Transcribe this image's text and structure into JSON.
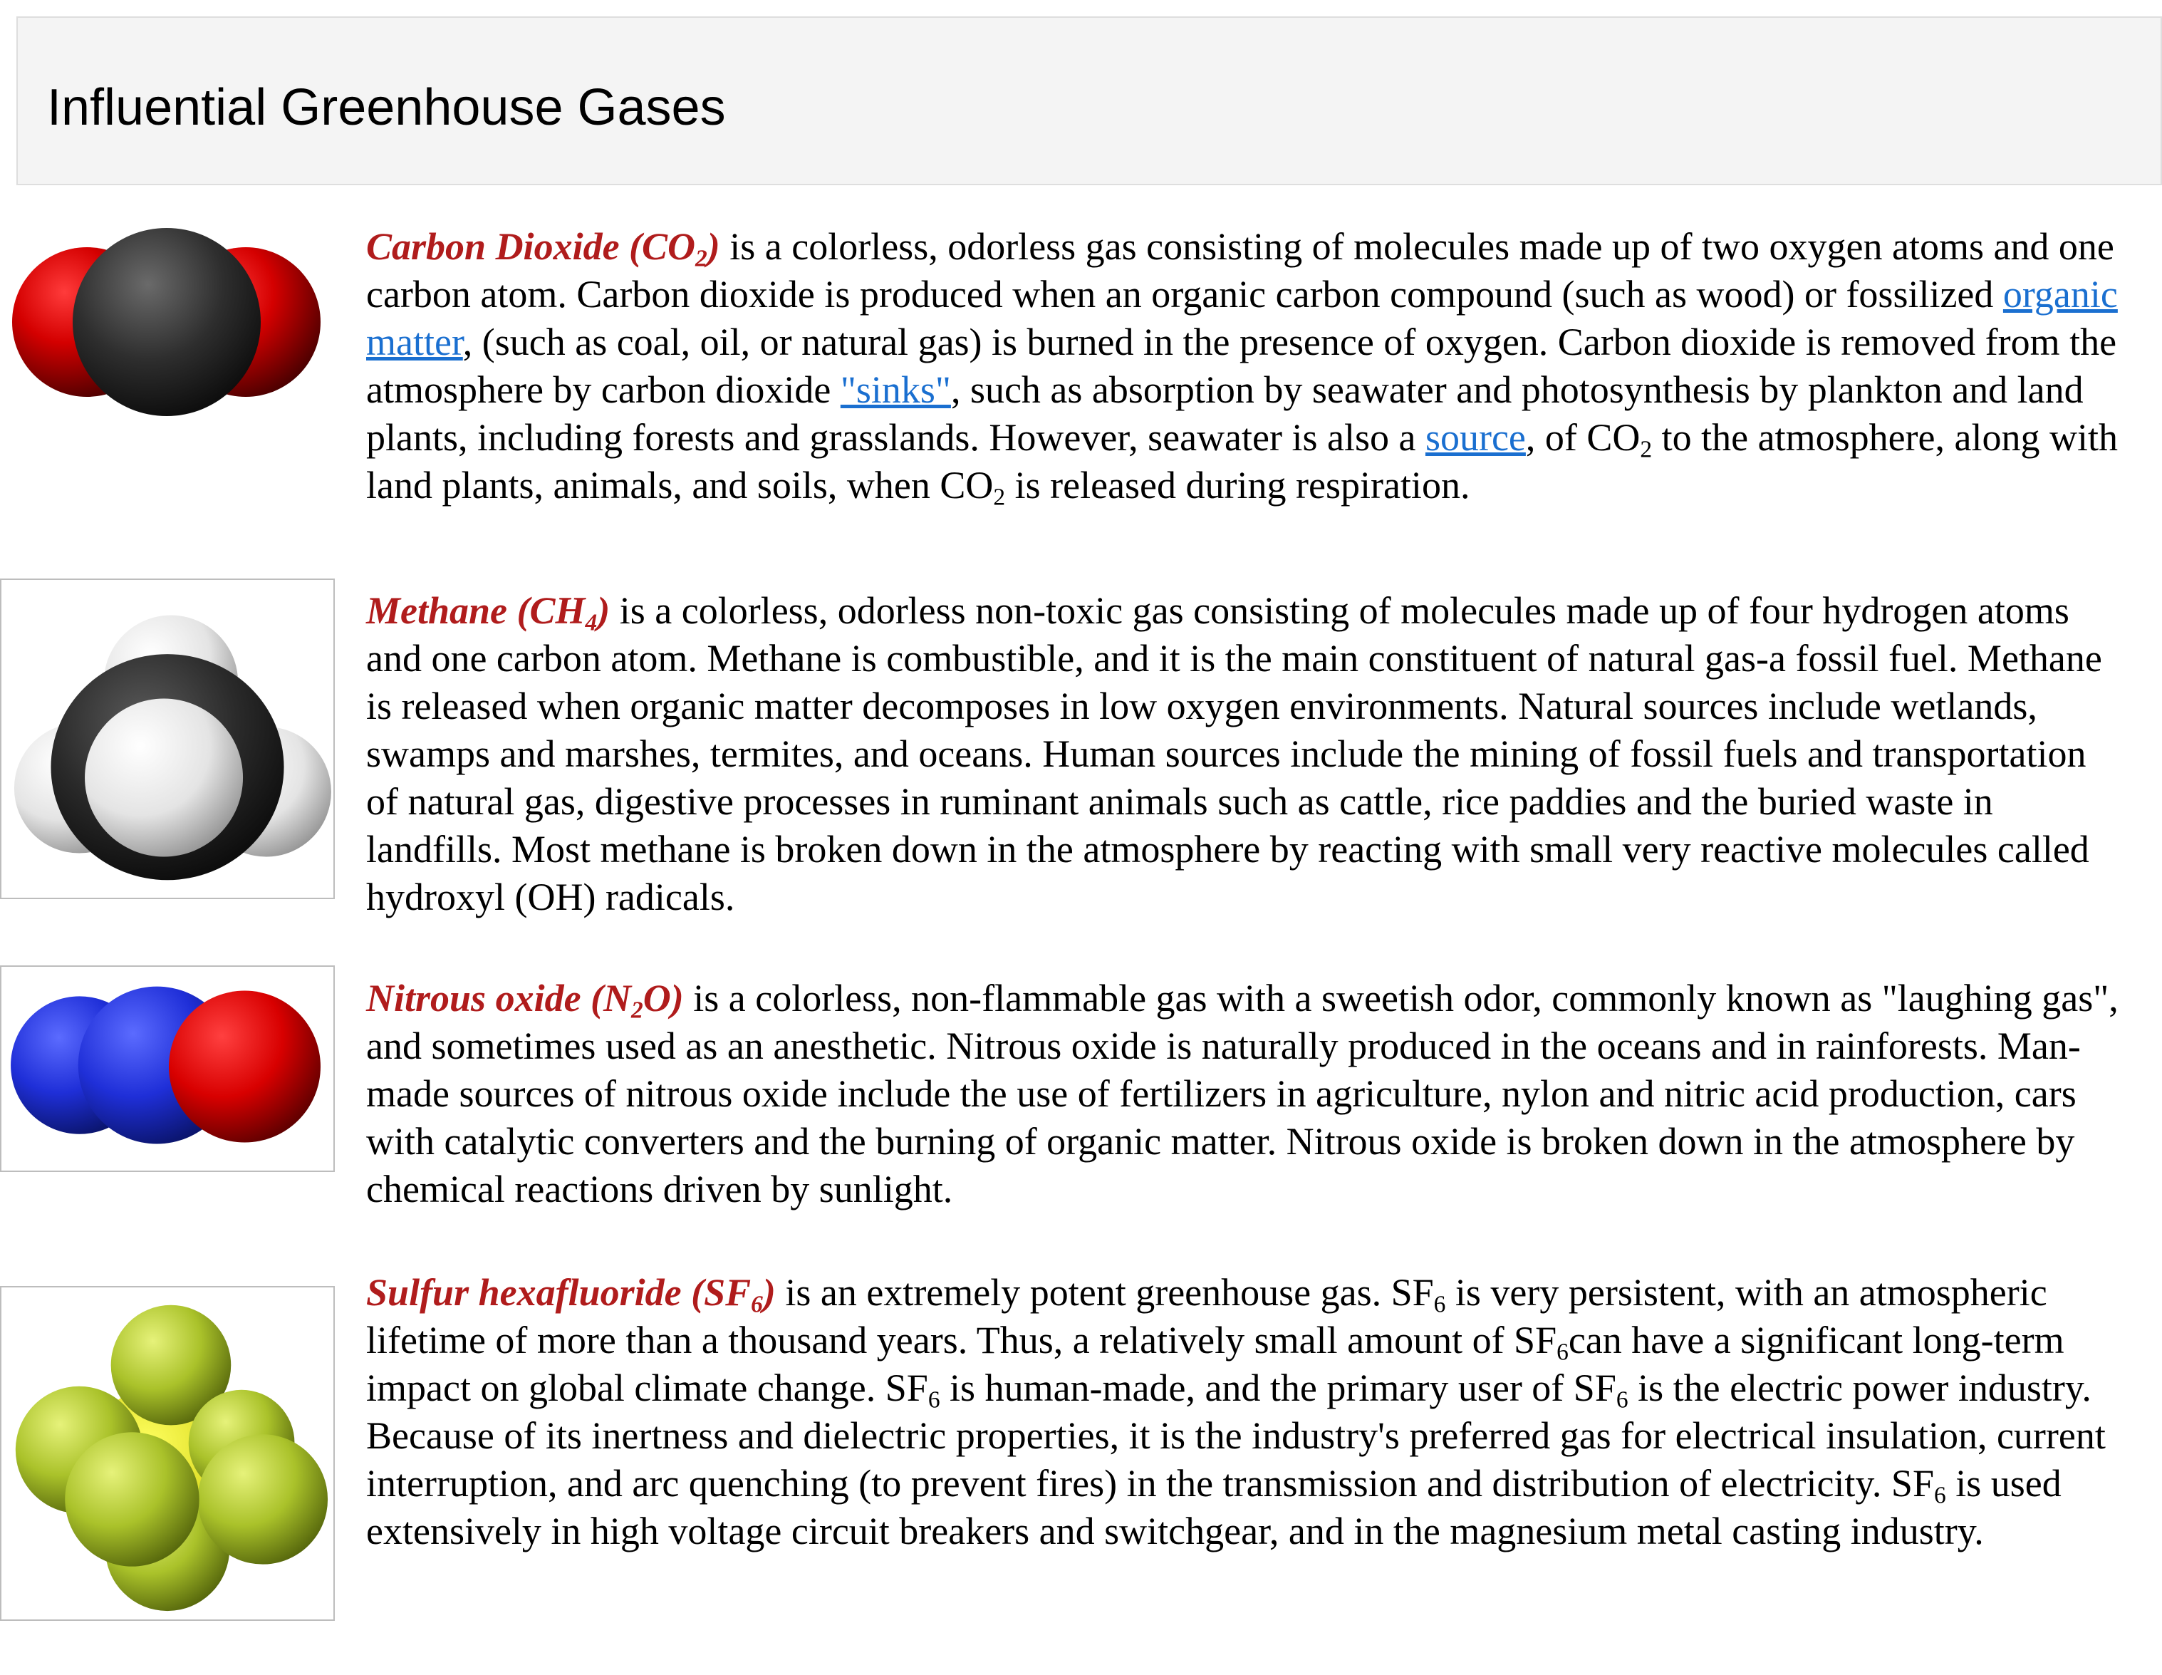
{
  "header": {
    "title": "Influential Greenhouse Gases"
  },
  "entries": [
    {
      "icon": "carbon-dioxide-molecule-icon",
      "term": {
        "pre": "Carbon Dioxide (CO",
        "sub": "2",
        "post": ")"
      },
      "t1": " is a colorless, odorless gas consisting of molecules made up of two oxygen atoms and one carbon atom. Carbon dioxide is produced when an organic carbon compound (such as wood) or fossilized ",
      "link1": "organic matter",
      "t2": ", (such as coal, oil, or natural gas) is burned in the presence of oxygen. Carbon dioxide is removed from the atmosphere by carbon dioxide ",
      "link2": "\"sinks\"",
      "t3": ", such as absorption by seawater and photosynthesis by plankton and land plants, including forests and grasslands. However, seawater is also a ",
      "link3": "source",
      "t4": ", of CO",
      "s1": "2",
      "t5": " to the atmosphere, along with land plants, animals, and soils, when CO",
      "s2": "2",
      "t6": " is released during respiration."
    },
    {
      "icon": "methane-molecule-icon",
      "term": {
        "pre": "Methane (CH",
        "sub": "4",
        "post": ")"
      },
      "t1": " is a colorless, odorless non-toxic gas consisting of molecules made up of four hydrogen atoms and one carbon atom. Methane is combustible, and it is the main constituent of natural gas-a fossil fuel. Methane is released when organic matter decomposes in low oxygen environments. Natural sources include wetlands, swamps and marshes, termites, and oceans. Human sources include the mining of fossil fuels and transportation of natural gas, digestive processes in ruminant animals such as cattle, rice paddies and the buried waste in landfills. Most methane is broken down in the atmosphere by reacting with small very reactive molecules called hydroxyl (OH) radicals."
    },
    {
      "icon": "nitrous-oxide-molecule-icon",
      "term": {
        "pre": "Nitrous oxide (N",
        "sub": "2",
        "post": "O)"
      },
      "t1": " is a colorless, non-flammable gas with a sweetish odor, commonly known as \"laughing gas\", and sometimes used as an anesthetic. Nitrous oxide is naturally produced in the oceans and in rainforests. Man-made sources of nitrous oxide include the use of fertilizers in agriculture, nylon and nitric acid production, cars with catalytic converters and the burning of organic matter. Nitrous oxide is broken down in the atmosphere by chemical reactions driven by sunlight."
    },
    {
      "icon": "sulfur-hexafluoride-molecule-icon",
      "term": {
        "pre": "Sulfur hexafluoride (SF",
        "sub": "6",
        "post": ")"
      },
      "t1": " is an extremely potent greenhouse gas. SF",
      "s1": "6",
      "t2": " is very persistent, with an atmospheric lifetime of more than a thousand years. Thus, a relatively small amount of SF",
      "s2": "6",
      "t3": "can have a significant long-term impact on global climate change. SF",
      "s3": "6",
      "t4": " is human-made, and the primary user of SF",
      "s4": "6",
      "t5": " is the electric power industry. Because of its inertness and dielectric properties, it is the industry's preferred gas for electrical insulation, current interruption, and arc quenching (to prevent fires) in the transmission and distribution of electricity. SF",
      "s5": "6",
      "t6": " is used extensively in high voltage circuit breakers and switchgear, and in the magnesium metal casting industry."
    }
  ]
}
